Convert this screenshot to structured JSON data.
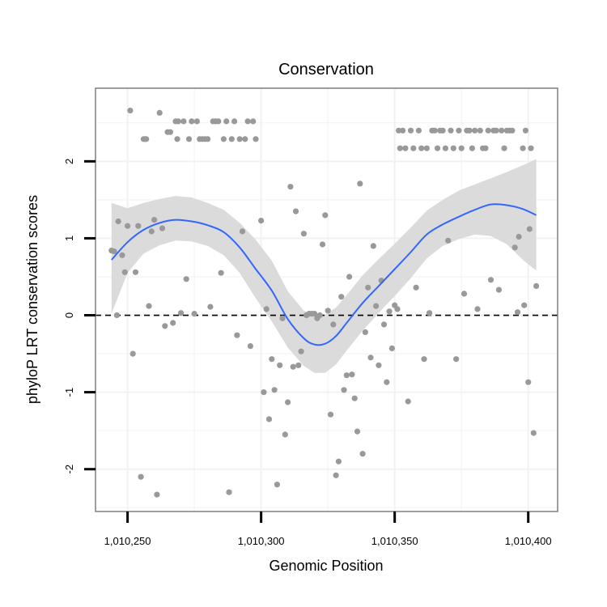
{
  "chart_data": {
    "type": "scatter",
    "title": "Conservation",
    "xlabel": "Genomic Position",
    "ylabel": "phyloP LRT conservation scores",
    "xlim": [
      1010238,
      1010411
    ],
    "ylim": [
      -2.55,
      2.95
    ],
    "grid": true,
    "x_ticks": [
      1010250,
      1010300,
      1010350,
      1010400
    ],
    "x_tick_labels": [
      "1,010,250",
      "1,010,300",
      "1,010,350",
      "1,010,400"
    ],
    "y_ticks": [
      -2,
      -1,
      0,
      1,
      2
    ],
    "y_tick_labels": [
      "-2",
      "-1",
      "0",
      "1",
      "2"
    ],
    "reference_line": {
      "y": 0,
      "style": "dashed"
    },
    "colors": {
      "points": "#999999",
      "smooth": "#3366ff",
      "ribbon": "#d9d9d9",
      "panel_border": "#7f7f7f",
      "grid": "#f2f2f2"
    },
    "points": [
      {
        "x": 1010244,
        "y": 0.84
      },
      {
        "x": 1010245,
        "y": 0.83
      },
      {
        "x": 1010246,
        "y": 0.0
      },
      {
        "x": 1010246.5,
        "y": 1.22
      },
      {
        "x": 1010248,
        "y": 0.78
      },
      {
        "x": 1010249,
        "y": 0.56
      },
      {
        "x": 1010250,
        "y": 1.16
      },
      {
        "x": 1010251,
        "y": 2.66
      },
      {
        "x": 1010252,
        "y": -0.5
      },
      {
        "x": 1010253,
        "y": 0.56
      },
      {
        "x": 1010254,
        "y": 1.16
      },
      {
        "x": 1010255,
        "y": -2.1
      },
      {
        "x": 1010256,
        "y": 2.29
      },
      {
        "x": 1010256.6,
        "y": 2.29
      },
      {
        "x": 1010257,
        "y": 2.29
      },
      {
        "x": 1010258,
        "y": 0.12
      },
      {
        "x": 1010259,
        "y": 1.09
      },
      {
        "x": 1010260,
        "y": 1.24
      },
      {
        "x": 1010261,
        "y": -2.33
      },
      {
        "x": 1010262,
        "y": 2.63
      },
      {
        "x": 1010263,
        "y": 1.13
      },
      {
        "x": 1010264,
        "y": -0.14
      },
      {
        "x": 1010265,
        "y": 2.38
      },
      {
        "x": 1010266,
        "y": 2.38
      },
      {
        "x": 1010267,
        "y": -0.1
      },
      {
        "x": 1010268,
        "y": 2.52
      },
      {
        "x": 1010268.6,
        "y": 2.29
      },
      {
        "x": 1010269,
        "y": 2.52
      },
      {
        "x": 1010270,
        "y": 0.03
      },
      {
        "x": 1010271,
        "y": 2.52
      },
      {
        "x": 1010272,
        "y": 0.47
      },
      {
        "x": 1010273,
        "y": 2.29
      },
      {
        "x": 1010274,
        "y": 2.52
      },
      {
        "x": 1010275,
        "y": 0.02
      },
      {
        "x": 1010276,
        "y": 2.52
      },
      {
        "x": 1010277,
        "y": 2.29
      },
      {
        "x": 1010278,
        "y": 2.29
      },
      {
        "x": 1010279,
        "y": 2.29
      },
      {
        "x": 1010280,
        "y": 2.29
      },
      {
        "x": 1010281,
        "y": 0.11
      },
      {
        "x": 1010282,
        "y": 2.52
      },
      {
        "x": 1010283,
        "y": 2.52
      },
      {
        "x": 1010284,
        "y": 2.52
      },
      {
        "x": 1010285,
        "y": 0.55
      },
      {
        "x": 1010286,
        "y": 2.29
      },
      {
        "x": 1010287,
        "y": 2.52
      },
      {
        "x": 1010288,
        "y": -2.3
      },
      {
        "x": 1010289,
        "y": 2.29
      },
      {
        "x": 1010290,
        "y": 2.52
      },
      {
        "x": 1010291,
        "y": -0.26
      },
      {
        "x": 1010292,
        "y": 2.29
      },
      {
        "x": 1010293,
        "y": 1.09
      },
      {
        "x": 1010294,
        "y": 2.29
      },
      {
        "x": 1010295,
        "y": 2.52
      },
      {
        "x": 1010296,
        "y": -0.4
      },
      {
        "x": 1010297,
        "y": 2.52
      },
      {
        "x": 1010298,
        "y": 2.29
      },
      {
        "x": 1010300,
        "y": 1.23
      },
      {
        "x": 1010301,
        "y": -1.0
      },
      {
        "x": 1010302,
        "y": 0.08
      },
      {
        "x": 1010303,
        "y": -1.35
      },
      {
        "x": 1010304,
        "y": -0.57
      },
      {
        "x": 1010305,
        "y": -0.97
      },
      {
        "x": 1010306,
        "y": -2.2
      },
      {
        "x": 1010307,
        "y": -0.65
      },
      {
        "x": 1010308,
        "y": -0.04
      },
      {
        "x": 1010309,
        "y": -1.55
      },
      {
        "x": 1010310,
        "y": -1.13
      },
      {
        "x": 1010311,
        "y": 1.67
      },
      {
        "x": 1010312,
        "y": -0.67
      },
      {
        "x": 1010313,
        "y": 1.35
      },
      {
        "x": 1010314,
        "y": -0.65
      },
      {
        "x": 1010315,
        "y": -0.47
      },
      {
        "x": 1010316,
        "y": 1.06
      },
      {
        "x": 1010317,
        "y": 0.0
      },
      {
        "x": 1010318,
        "y": 0.02
      },
      {
        "x": 1010319,
        "y": 0.02
      },
      {
        "x": 1010320,
        "y": 0.02
      },
      {
        "x": 1010321,
        "y": -0.04
      },
      {
        "x": 1010322,
        "y": 0.0
      },
      {
        "x": 1010323,
        "y": 0.92
      },
      {
        "x": 1010324,
        "y": 1.3
      },
      {
        "x": 1010325,
        "y": 0.06
      },
      {
        "x": 1010326,
        "y": -1.29
      },
      {
        "x": 1010327,
        "y": -0.12
      },
      {
        "x": 1010328,
        "y": -2.08
      },
      {
        "x": 1010329,
        "y": -1.9
      },
      {
        "x": 1010330,
        "y": 0.24
      },
      {
        "x": 1010331,
        "y": -0.97
      },
      {
        "x": 1010332,
        "y": -0.78
      },
      {
        "x": 1010333,
        "y": 0.5
      },
      {
        "x": 1010334,
        "y": -0.77
      },
      {
        "x": 1010335,
        "y": -1.08
      },
      {
        "x": 1010336,
        "y": -1.51
      },
      {
        "x": 1010337,
        "y": 1.71
      },
      {
        "x": 1010338,
        "y": -1.8
      },
      {
        "x": 1010339,
        "y": -0.22
      },
      {
        "x": 1010340,
        "y": 0.36
      },
      {
        "x": 1010341,
        "y": -0.55
      },
      {
        "x": 1010342,
        "y": 0.9
      },
      {
        "x": 1010343,
        "y": 0.12
      },
      {
        "x": 1010344,
        "y": -0.65
      },
      {
        "x": 1010345,
        "y": 0.45
      },
      {
        "x": 1010346,
        "y": -0.12
      },
      {
        "x": 1010347,
        "y": -0.87
      },
      {
        "x": 1010348,
        "y": 0.05
      },
      {
        "x": 1010349,
        "y": -0.43
      },
      {
        "x": 1010350,
        "y": 0.13
      },
      {
        "x": 1010351,
        "y": 0.08
      },
      {
        "x": 1010351.5,
        "y": 2.4
      },
      {
        "x": 1010352,
        "y": 2.17
      },
      {
        "x": 1010353,
        "y": 2.4
      },
      {
        "x": 1010354,
        "y": 2.17
      },
      {
        "x": 1010355,
        "y": -1.12
      },
      {
        "x": 1010356,
        "y": 2.4
      },
      {
        "x": 1010357,
        "y": 2.17
      },
      {
        "x": 1010358,
        "y": 0.36
      },
      {
        "x": 1010359,
        "y": 2.4
      },
      {
        "x": 1010360,
        "y": 2.17
      },
      {
        "x": 1010361,
        "y": -0.57
      },
      {
        "x": 1010362,
        "y": 2.17
      },
      {
        "x": 1010363,
        "y": 0.03
      },
      {
        "x": 1010364,
        "y": 2.4
      },
      {
        "x": 1010365,
        "y": 2.4
      },
      {
        "x": 1010366,
        "y": 2.17
      },
      {
        "x": 1010367,
        "y": 2.4
      },
      {
        "x": 1010368,
        "y": 2.4
      },
      {
        "x": 1010369,
        "y": 2.17
      },
      {
        "x": 1010370,
        "y": 0.97
      },
      {
        "x": 1010371,
        "y": 2.4
      },
      {
        "x": 1010372,
        "y": 2.17
      },
      {
        "x": 1010373,
        "y": -0.57
      },
      {
        "x": 1010374,
        "y": 2.4
      },
      {
        "x": 1010375,
        "y": 2.17
      },
      {
        "x": 1010376,
        "y": 0.28
      },
      {
        "x": 1010377,
        "y": 2.4
      },
      {
        "x": 1010378,
        "y": 2.4
      },
      {
        "x": 1010379,
        "y": 2.17
      },
      {
        "x": 1010380,
        "y": 2.4
      },
      {
        "x": 1010381,
        "y": 0.08
      },
      {
        "x": 1010382,
        "y": 2.4
      },
      {
        "x": 1010383,
        "y": 2.17
      },
      {
        "x": 1010384,
        "y": 2.17
      },
      {
        "x": 1010385,
        "y": 2.4
      },
      {
        "x": 1010386,
        "y": 0.46
      },
      {
        "x": 1010387,
        "y": 2.4
      },
      {
        "x": 1010388,
        "y": 2.4
      },
      {
        "x": 1010389,
        "y": 0.33
      },
      {
        "x": 1010390,
        "y": 2.4
      },
      {
        "x": 1010391,
        "y": 2.17
      },
      {
        "x": 1010392,
        "y": 2.4
      },
      {
        "x": 1010393,
        "y": 2.4
      },
      {
        "x": 1010394,
        "y": 2.4
      },
      {
        "x": 1010395,
        "y": 0.88
      },
      {
        "x": 1010396,
        "y": 0.04
      },
      {
        "x": 1010396.5,
        "y": 1.02
      },
      {
        "x": 1010398,
        "y": 2.17
      },
      {
        "x": 1010398.5,
        "y": 0.13
      },
      {
        "x": 1010399,
        "y": 2.4
      },
      {
        "x": 1010400,
        "y": -0.87
      },
      {
        "x": 1010400.5,
        "y": 1.12
      },
      {
        "x": 1010401,
        "y": 2.17
      },
      {
        "x": 1010402,
        "y": -1.53
      },
      {
        "x": 1010403,
        "y": 0.38
      }
    ],
    "smooth": {
      "x": [
        1010244,
        1010250,
        1010256,
        1010262,
        1010268,
        1010274,
        1010280,
        1010286,
        1010292,
        1010298,
        1010304,
        1010310,
        1010316,
        1010320,
        1010324,
        1010328,
        1010332,
        1010338,
        1010344,
        1010350,
        1010356,
        1010362,
        1010368,
        1010374,
        1010380,
        1010386,
        1010392,
        1010398,
        1010403
      ],
      "y": [
        0.72,
        0.95,
        1.11,
        1.2,
        1.24,
        1.22,
        1.17,
        1.08,
        0.88,
        0.6,
        0.32,
        -0.05,
        -0.3,
        -0.38,
        -0.37,
        -0.27,
        -0.1,
        0.16,
        0.38,
        0.6,
        0.82,
        1.05,
        1.18,
        1.28,
        1.37,
        1.44,
        1.43,
        1.38,
        1.3
      ],
      "lower": [
        0.02,
        0.55,
        0.8,
        0.91,
        0.97,
        0.96,
        0.9,
        0.78,
        0.55,
        0.22,
        -0.08,
        -0.42,
        -0.66,
        -0.75,
        -0.75,
        -0.64,
        -0.46,
        -0.2,
        0.03,
        0.25,
        0.48,
        0.74,
        0.9,
        0.99,
        1.05,
        1.03,
        0.92,
        0.72,
        0.58
      ],
      "upper": [
        1.46,
        1.39,
        1.46,
        1.51,
        1.55,
        1.53,
        1.46,
        1.37,
        1.2,
        0.98,
        0.71,
        0.31,
        0.06,
        0.0,
        0.01,
        0.1,
        0.26,
        0.52,
        0.73,
        0.93,
        1.14,
        1.36,
        1.5,
        1.62,
        1.7,
        1.78,
        1.86,
        1.95,
        2.03
      ]
    }
  }
}
